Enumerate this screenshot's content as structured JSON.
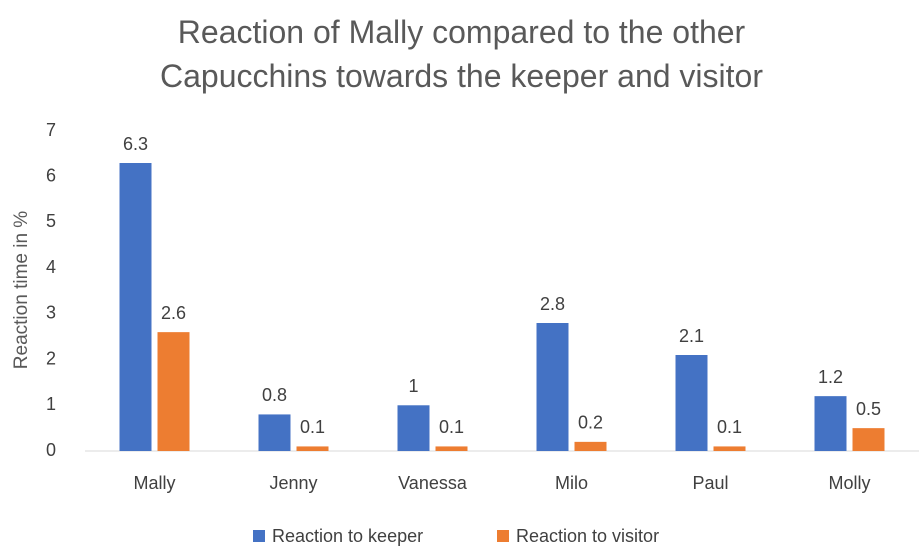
{
  "chart_data": {
    "type": "bar",
    "title": "Reaction of Mally compared to the other Capucchins towards the keeper and visitor",
    "y_label": "Reaction time in %",
    "categories": [
      "Mally",
      "Jenny",
      "Vanessa",
      "Milo",
      "Paul",
      "Molly"
    ],
    "series": [
      {
        "name": "Reaction to keeper",
        "color": "#4472c4",
        "values": [
          6.3,
          0.8,
          1,
          2.8,
          2.1,
          1.2
        ]
      },
      {
        "name": "Reaction to visitor",
        "color": "#ed7d31",
        "values": [
          2.6,
          0.1,
          0.1,
          0.2,
          0.1,
          0.5
        ]
      }
    ],
    "ylim": [
      0,
      7
    ],
    "yticks": [
      0,
      1,
      2,
      3,
      4,
      5,
      6,
      7
    ],
    "grid": false,
    "legend": "bottom"
  }
}
